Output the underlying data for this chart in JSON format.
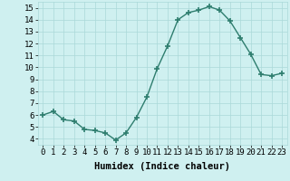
{
  "x": [
    0,
    1,
    2,
    3,
    4,
    5,
    6,
    7,
    8,
    9,
    10,
    11,
    12,
    13,
    14,
    15,
    16,
    17,
    18,
    19,
    20,
    21,
    22,
    23
  ],
  "y": [
    6.0,
    6.3,
    5.6,
    5.5,
    4.8,
    4.7,
    4.5,
    3.9,
    4.5,
    5.8,
    7.5,
    9.9,
    11.8,
    14.0,
    14.6,
    14.8,
    15.1,
    14.8,
    13.9,
    12.5,
    11.1,
    9.4,
    9.3,
    9.5
  ],
  "line_color": "#2e7d6e",
  "marker": "+",
  "marker_size": 4,
  "bg_color": "#cff0f0",
  "grid_color": "#aad8d8",
  "xlabel": "Humidex (Indice chaleur)",
  "xlim": [
    -0.5,
    23.5
  ],
  "ylim": [
    3.5,
    15.5
  ],
  "yticks": [
    4,
    5,
    6,
    7,
    8,
    9,
    10,
    11,
    12,
    13,
    14,
    15
  ],
  "xticks": [
    0,
    1,
    2,
    3,
    4,
    5,
    6,
    7,
    8,
    9,
    10,
    11,
    12,
    13,
    14,
    15,
    16,
    17,
    18,
    19,
    20,
    21,
    22,
    23
  ],
  "tick_label_fontsize": 6.5,
  "xlabel_fontsize": 7.5,
  "linewidth": 1.0,
  "marker_linewidth": 1.2
}
